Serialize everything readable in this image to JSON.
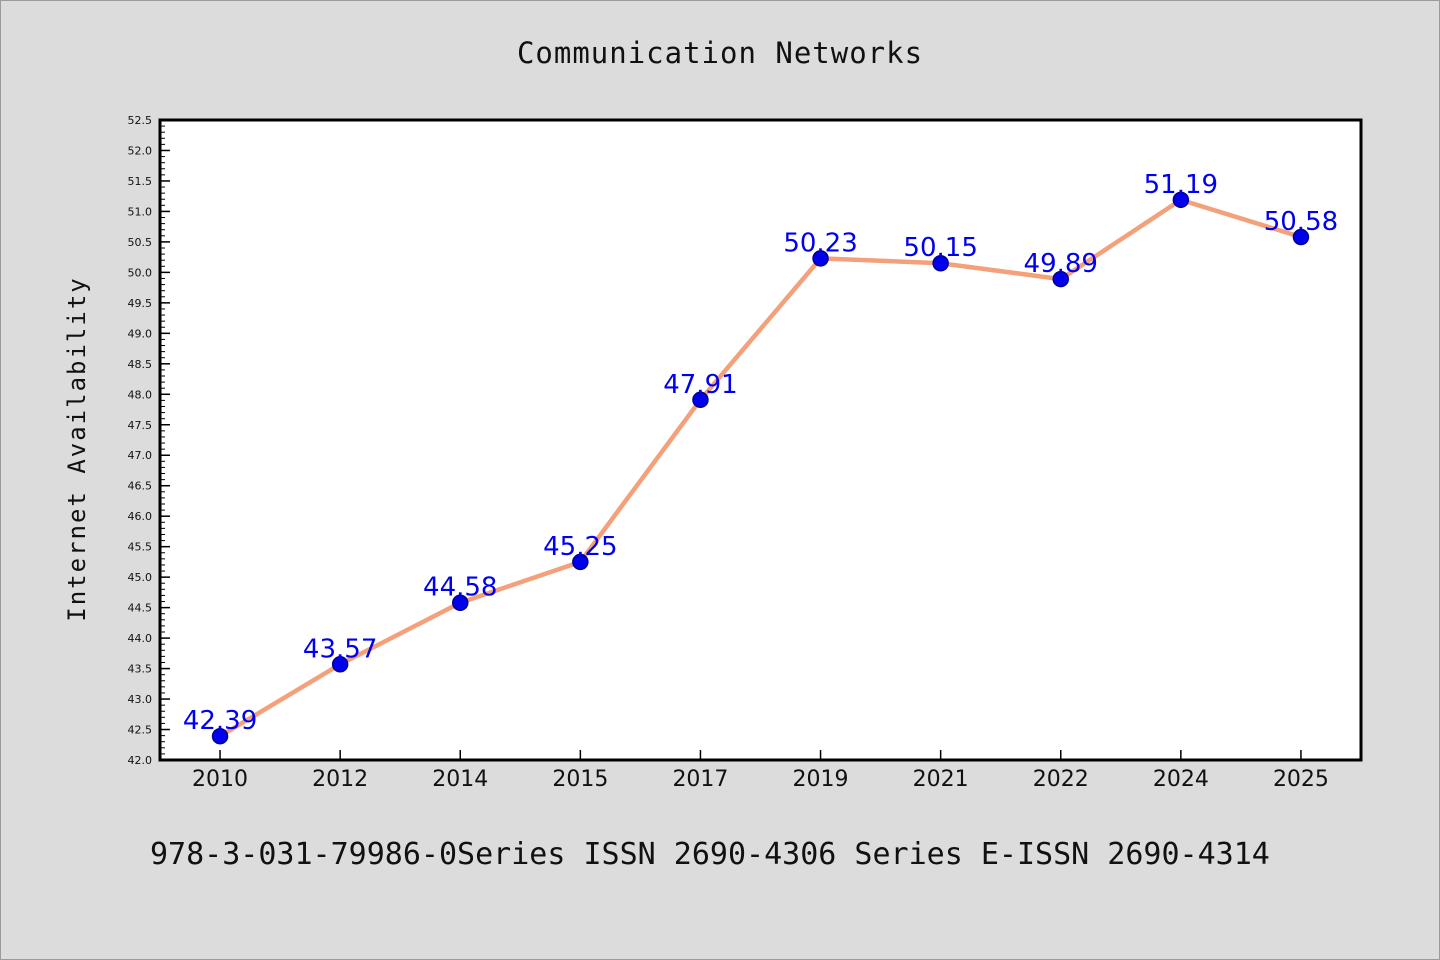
{
  "chart_data": {
    "type": "line",
    "title": "Communication Networks",
    "xlabel": "",
    "ylabel": "Internet Availability",
    "categories": [
      "2010",
      "2012",
      "2014",
      "2015",
      "2017",
      "2019",
      "2021",
      "2022",
      "2024",
      "2025"
    ],
    "series": [
      {
        "values": [
          42.39,
          43.57,
          44.58,
          45.25,
          47.91,
          50.23,
          50.15,
          49.89,
          51.19,
          50.58
        ],
        "labels": [
          "42.39",
          "43.57",
          "44.58",
          "45.25",
          "47.91",
          "50.23",
          "50.15",
          "49.89",
          "51.19",
          "50.58"
        ]
      }
    ],
    "ylim": [
      42.0,
      52.5
    ],
    "yticks": [
      "42.0",
      "42.5",
      "43.0",
      "43.5",
      "44.0",
      "44.5",
      "45.0",
      "45.5",
      "46.0",
      "46.5",
      "47.0",
      "47.5",
      "48.0",
      "48.5",
      "49.0",
      "49.5",
      "50.0",
      "50.5",
      "51.0",
      "51.5",
      "52.0",
      "52.5"
    ],
    "grid": false,
    "legend": "none",
    "colors": {
      "line": "#f4a07a",
      "marker": "#0000ee",
      "marker_edge": "#00008b",
      "label": "#0000ee"
    }
  },
  "footer": "978-3-031-79986-0Series ISSN 2690-4306 Series E-ISSN 2690-4314"
}
